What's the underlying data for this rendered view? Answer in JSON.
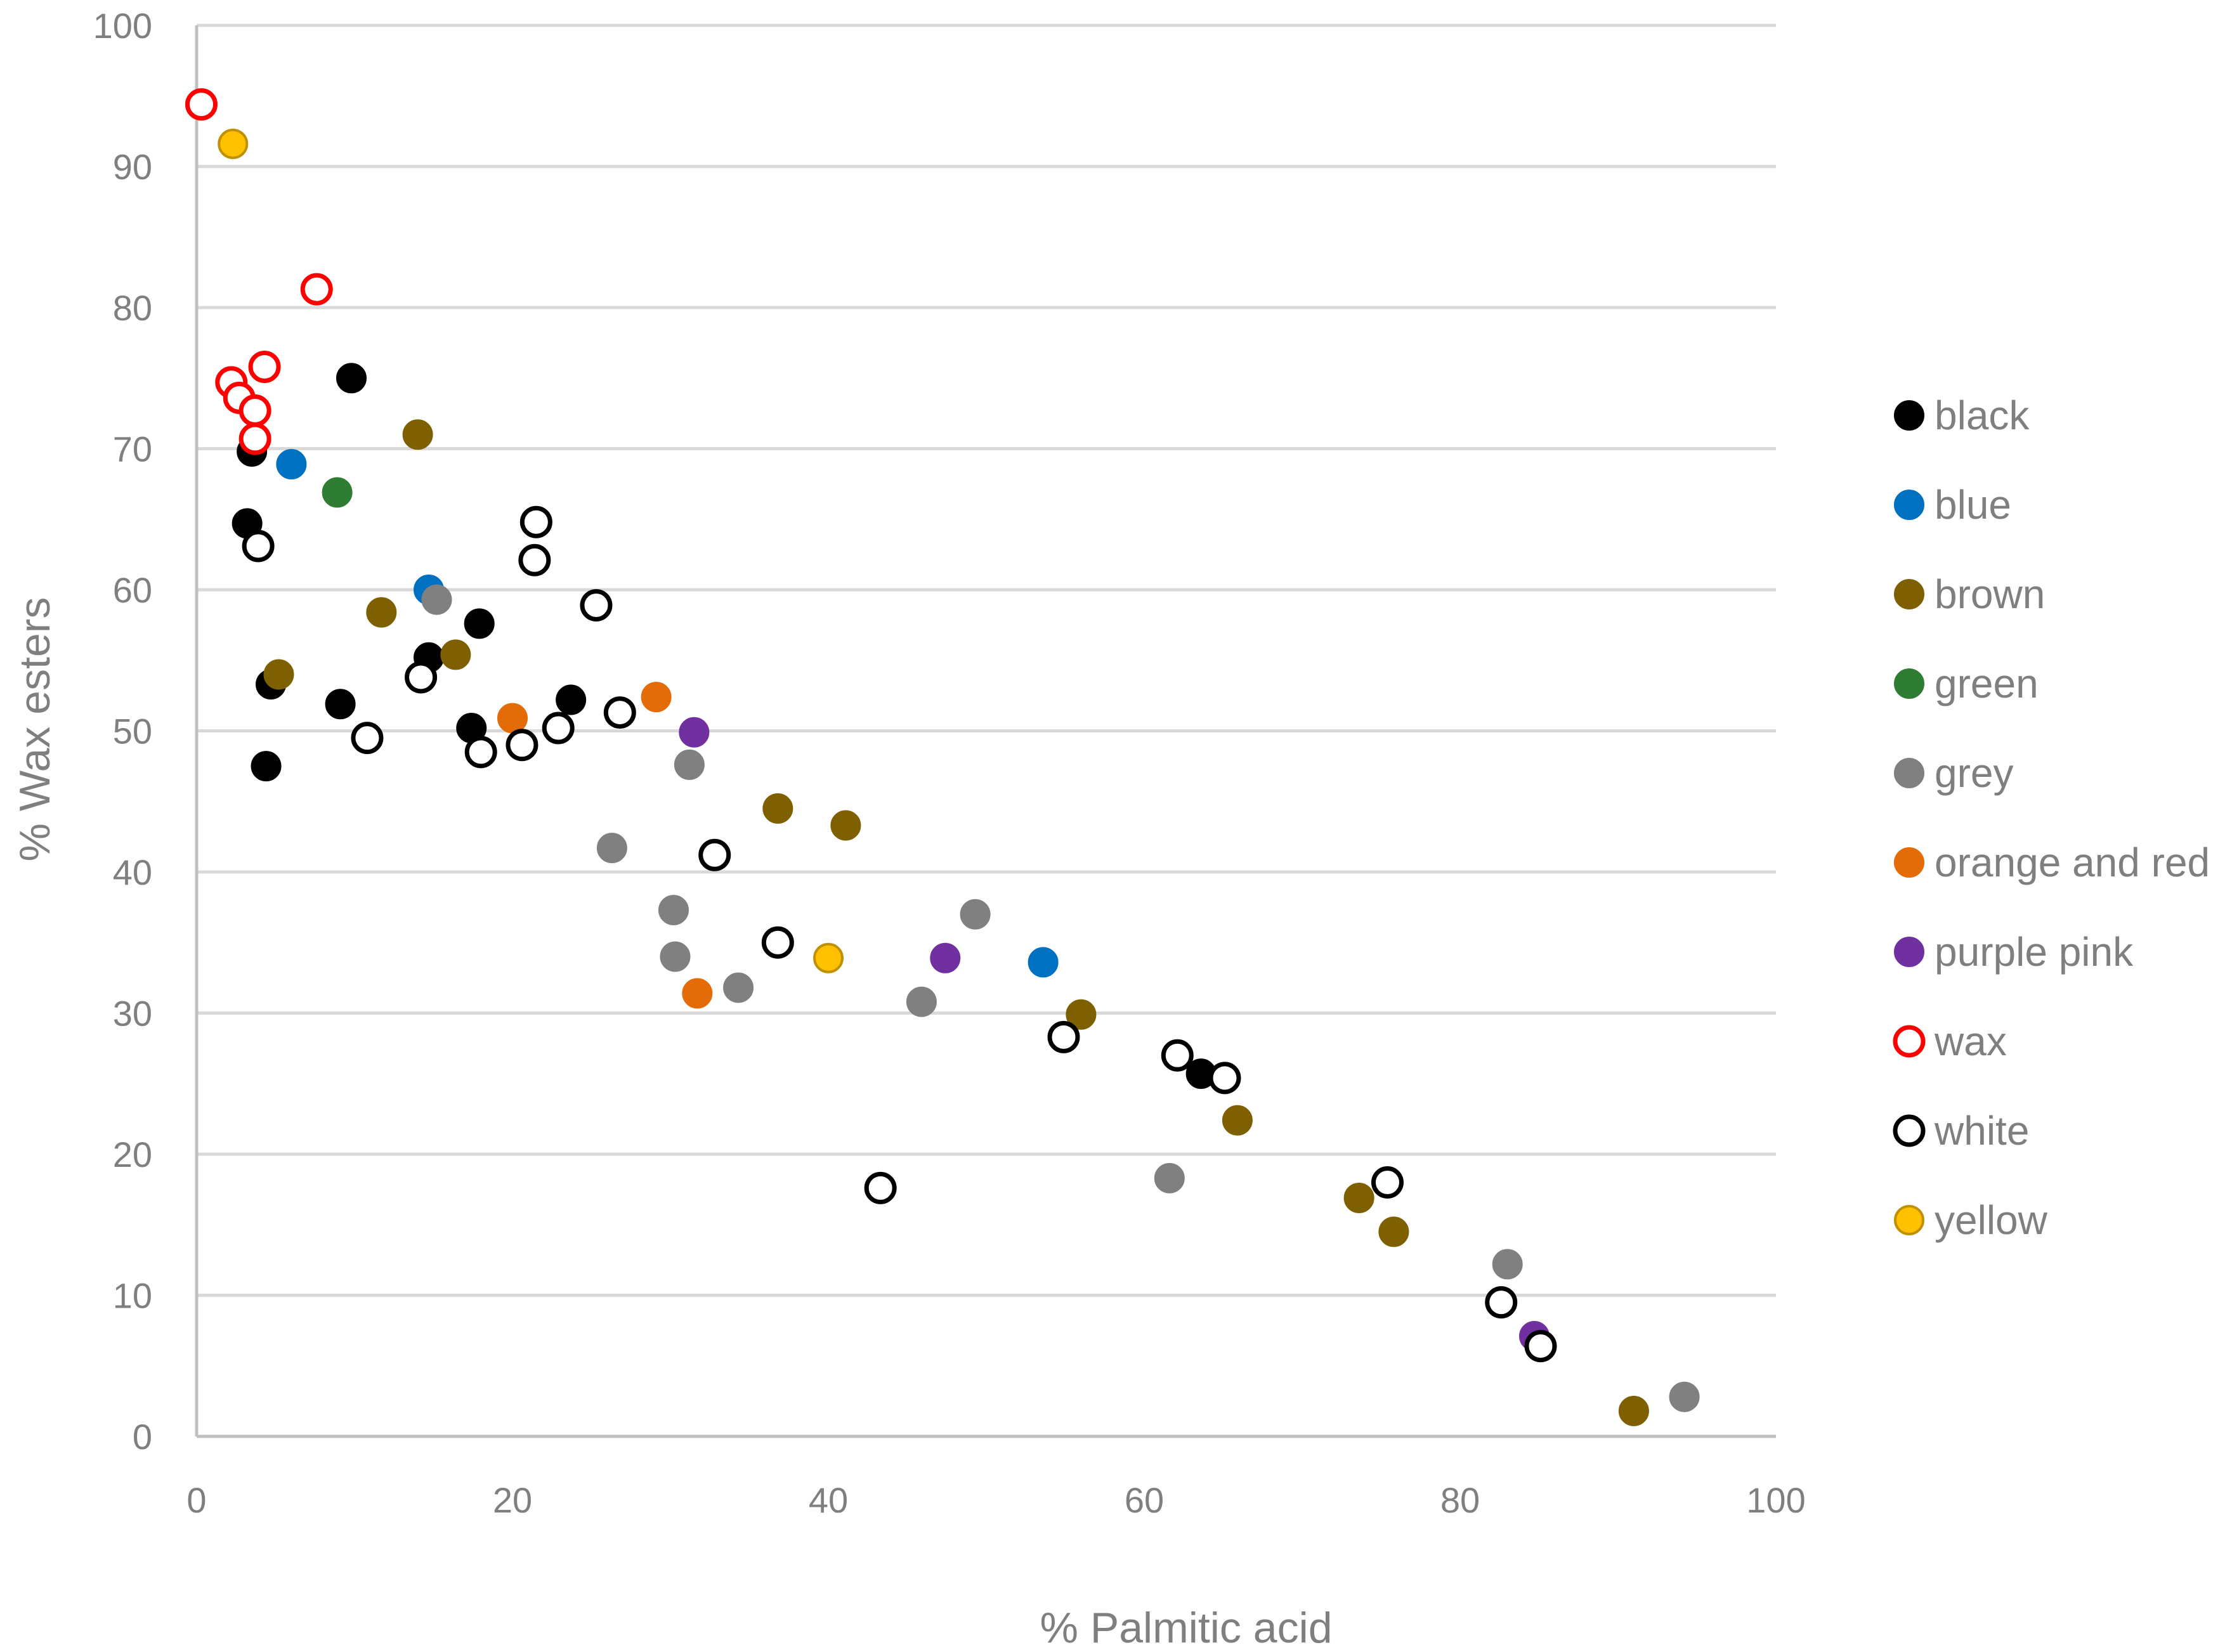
{
  "chart_data": {
    "type": "scatter",
    "title": "",
    "xlabel": "% Palmitic acid",
    "ylabel": "% Wax esters",
    "xlim": [
      0,
      100
    ],
    "ylim": [
      0,
      100
    ],
    "x_ticks": [
      "0",
      "20",
      "40",
      "60",
      "80",
      "100"
    ],
    "y_ticks": [
      "0",
      "10",
      "20",
      "30",
      "40",
      "50",
      "60",
      "70",
      "80",
      "90",
      "100"
    ],
    "grid": "horizontal",
    "legend_position": "right",
    "series": [
      {
        "name": "black",
        "fill": "#000000",
        "stroke": "#000000",
        "hollow": false,
        "points": [
          [
            9.8,
            75
          ],
          [
            3.5,
            69.8
          ],
          [
            3.2,
            64.7
          ],
          [
            4.7,
            53.3
          ],
          [
            4.4,
            47.5
          ],
          [
            9.1,
            51.9
          ],
          [
            14.7,
            55.2
          ],
          [
            17.9,
            57.6
          ],
          [
            17.4,
            50.2
          ],
          [
            23.7,
            52.2
          ],
          [
            63.6,
            25.7
          ]
        ]
      },
      {
        "name": "blue",
        "fill": "#0070c0",
        "stroke": "#0070c0",
        "hollow": false,
        "points": [
          [
            6,
            68.9
          ],
          [
            14.7,
            60
          ],
          [
            53.6,
            33.6
          ]
        ]
      },
      {
        "name": "brown",
        "fill": "#7f6000",
        "stroke": "#7f6000",
        "hollow": false,
        "points": [
          [
            14,
            71
          ],
          [
            11.7,
            58.4
          ],
          [
            16.4,
            55.4
          ],
          [
            5.2,
            54
          ],
          [
            36.8,
            44.5
          ],
          [
            41.1,
            43.3
          ],
          [
            56,
            29.9
          ],
          [
            65.9,
            22.4
          ],
          [
            73.6,
            16.9
          ],
          [
            75.8,
            14.5
          ],
          [
            91,
            1.8
          ]
        ]
      },
      {
        "name": "green",
        "fill": "#2e7d32",
        "stroke": "#2e7d32",
        "hollow": false,
        "points": [
          [
            8.9,
            66.9
          ]
        ]
      },
      {
        "name": "grey",
        "fill": "#808080",
        "stroke": "#808080",
        "hollow": false,
        "points": [
          [
            15.2,
            59.3
          ],
          [
            26.3,
            41.7
          ],
          [
            31.2,
            47.6
          ],
          [
            30.2,
            37.3
          ],
          [
            30.3,
            34
          ],
          [
            34.3,
            31.8
          ],
          [
            45.9,
            30.8
          ],
          [
            49.3,
            37
          ],
          [
            61.6,
            18.3
          ],
          [
            83,
            12.2
          ],
          [
            94.2,
            2.8
          ]
        ]
      },
      {
        "name": "orange and red",
        "fill": "#e36c09",
        "stroke": "#e36c09",
        "hollow": false,
        "points": [
          [
            20,
            50.9
          ],
          [
            29.1,
            52.4
          ],
          [
            31.7,
            31.4
          ]
        ]
      },
      {
        "name": "purple pink",
        "fill": "#7030a0",
        "stroke": "#7030a0",
        "hollow": false,
        "points": [
          [
            31.5,
            49.9
          ],
          [
            47.4,
            33.9
          ],
          [
            84.7,
            7.1
          ]
        ]
      },
      {
        "name": "wax",
        "fill": "#ffffff",
        "stroke": "#ff0000",
        "hollow": true,
        "points": [
          [
            0.3,
            94.4
          ],
          [
            7.6,
            81.3
          ],
          [
            4.3,
            75.8
          ],
          [
            2.2,
            74.7
          ],
          [
            2.7,
            73.6
          ],
          [
            3.7,
            72.7
          ],
          [
            3.7,
            70.7
          ]
        ]
      },
      {
        "name": "white",
        "fill": "#ffffff",
        "stroke": "#000000",
        "hollow": true,
        "points": [
          [
            3.9,
            63.1
          ],
          [
            21.5,
            64.8
          ],
          [
            21.4,
            62.1
          ],
          [
            25.3,
            58.9
          ],
          [
            14.2,
            53.8
          ],
          [
            26.8,
            51.3
          ],
          [
            10.8,
            49.5
          ],
          [
            22.9,
            50.2
          ],
          [
            18,
            48.5
          ],
          [
            20.6,
            49
          ],
          [
            32.8,
            41.2
          ],
          [
            36.8,
            35
          ],
          [
            54.9,
            28.3
          ],
          [
            62.1,
            27
          ],
          [
            65.1,
            25.4
          ],
          [
            43.3,
            17.6
          ],
          [
            75.4,
            18
          ],
          [
            82.6,
            9.5
          ],
          [
            85.1,
            6.4
          ]
        ]
      },
      {
        "name": "yellow",
        "fill": "#ffc000",
        "stroke": "#bf9000",
        "hollow": false,
        "points": [
          [
            2.3,
            91.6
          ],
          [
            40,
            33.9
          ]
        ]
      }
    ]
  }
}
